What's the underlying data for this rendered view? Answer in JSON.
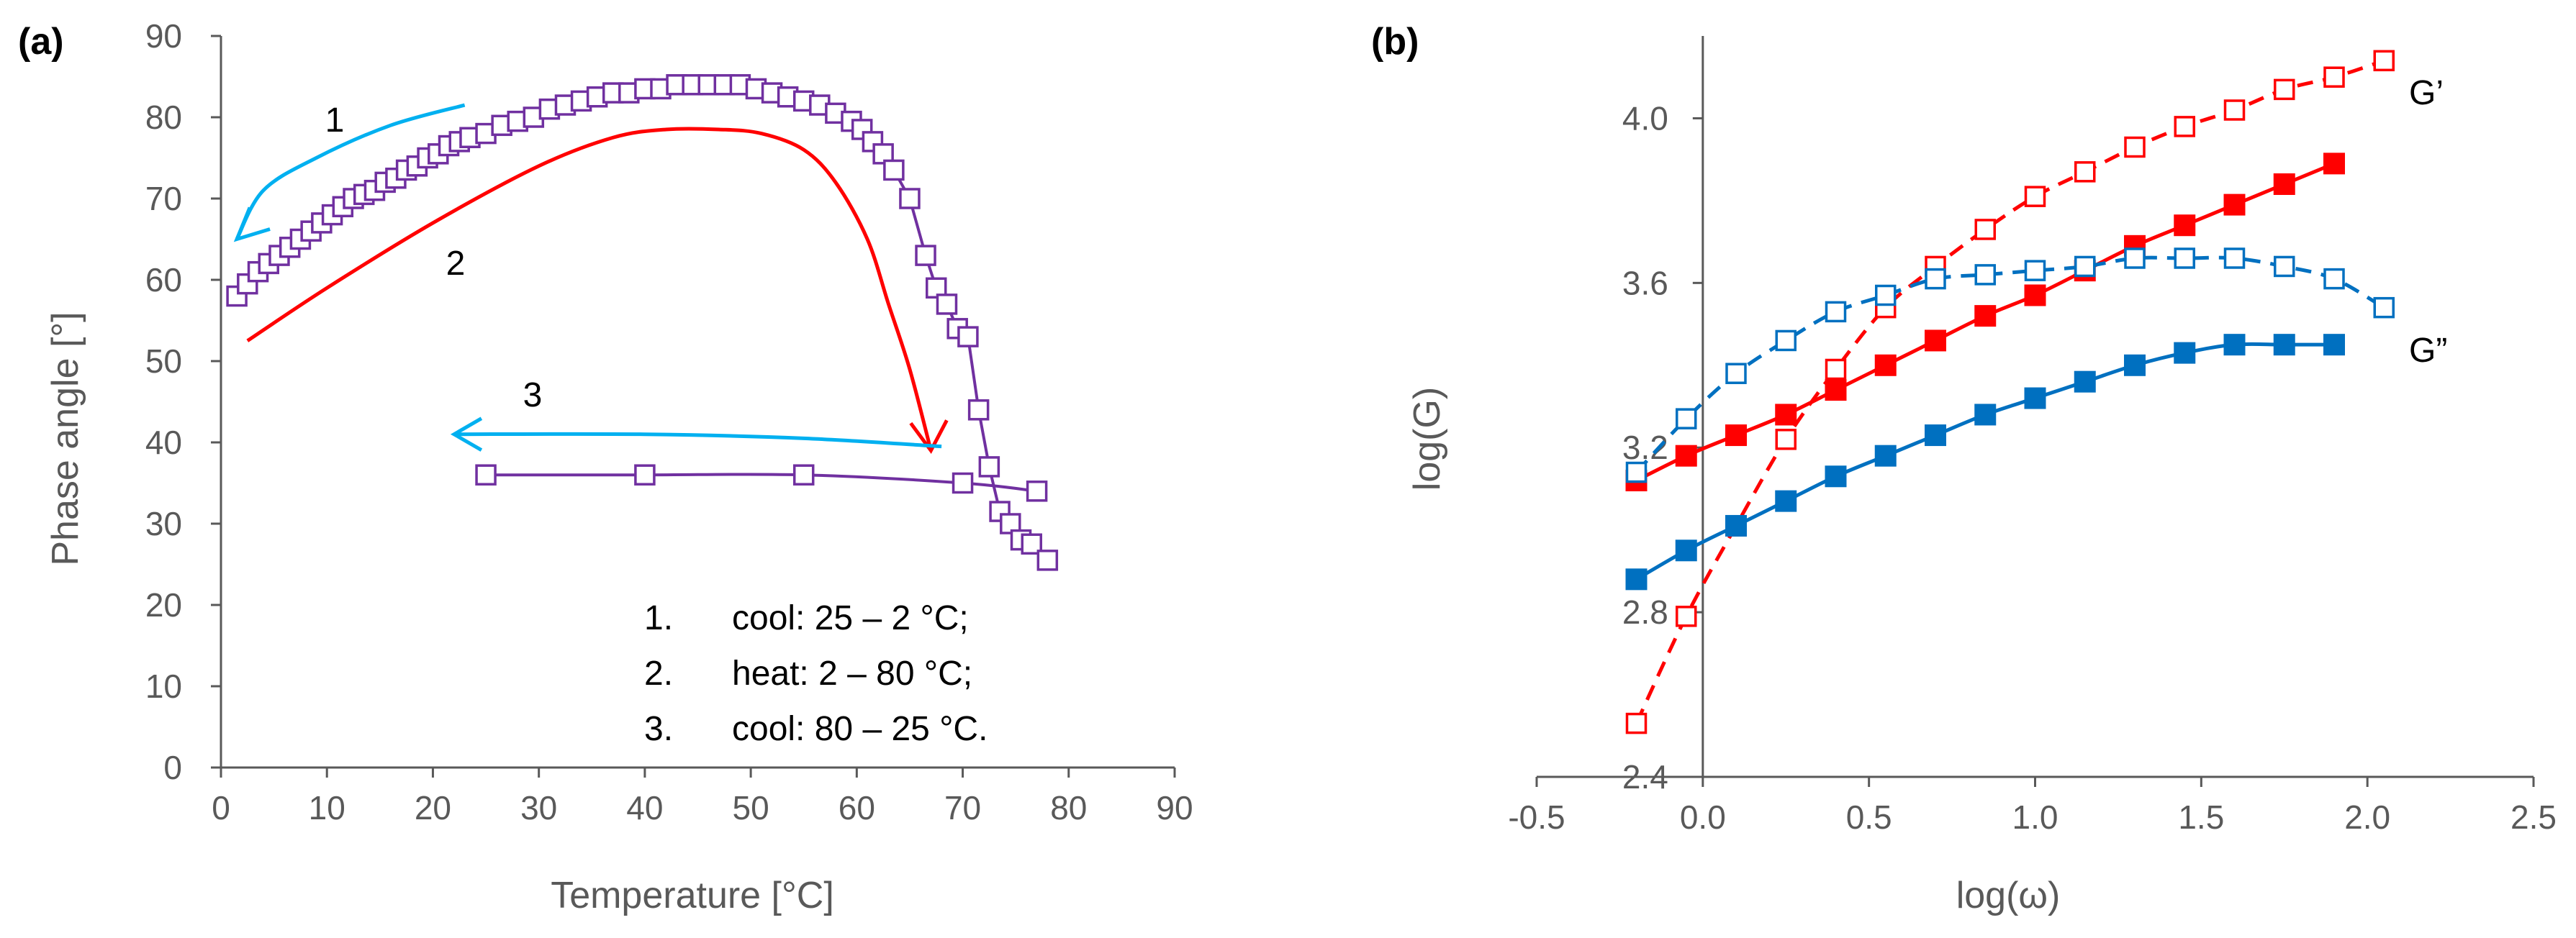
{
  "chart_data": [
    {
      "panel_label": "(a)",
      "type": "scatter",
      "xlabel": "Temperature [°C]",
      "ylabel": "Phase angle [°]",
      "xlim": [
        0,
        90
      ],
      "ylim": [
        0,
        90
      ],
      "xticks": [
        0,
        10,
        20,
        30,
        40,
        50,
        60,
        70,
        80,
        90
      ],
      "yticks": [
        0,
        10,
        20,
        30,
        40,
        50,
        60,
        70,
        80,
        90
      ],
      "colors": {
        "series": "#7030a0",
        "heat": "#ff0000",
        "cool_arrow": "#00b0f0",
        "axis": "#595959"
      },
      "series": [
        {
          "name": "cool 1 + heat 2 (markers)",
          "marker": "open-square",
          "x": [
            1.5,
            2.5,
            3.5,
            4.5,
            5.5,
            6.5,
            7.5,
            8.5,
            9.5,
            10.5,
            11.5,
            12.5,
            13.5,
            14.5,
            15.5,
            16.5,
            17.5,
            18.5,
            19.5,
            20.5,
            21.5,
            22.5,
            23.5,
            25,
            26.5,
            28,
            29.5,
            31,
            32.5,
            34,
            35.5,
            37,
            38.5,
            40,
            41.5,
            43,
            44.5,
            46,
            47.5,
            49,
            50.5,
            52,
            53.5,
            55,
            56.5,
            58,
            59.5,
            60.5,
            61.5,
            62.5,
            63.5,
            65,
            66.5,
            67.5,
            68.5,
            69.5,
            70.5,
            71.5,
            72.5,
            73.5,
            74.5,
            75.5,
            76.5,
            78
          ],
          "y": [
            58,
            59.5,
            61,
            62,
            63,
            64,
            65,
            66,
            67,
            68,
            69,
            70,
            70.5,
            71,
            72,
            72.5,
            73.5,
            74,
            75,
            75.5,
            76.5,
            77,
            77.5,
            78,
            79,
            79.5,
            80,
            81,
            81.5,
            82,
            82.5,
            83,
            83,
            83.5,
            83.5,
            84,
            84,
            84,
            84,
            84,
            83.5,
            83,
            82.5,
            82,
            81.5,
            80.5,
            79.5,
            78.5,
            77,
            75.5,
            73.5,
            70,
            63,
            59,
            57,
            54,
            53,
            44,
            37,
            31.5,
            30,
            28,
            27.5,
            25.5
          ]
        },
        {
          "name": "cool 3",
          "marker": "open-square",
          "x": [
            25,
            40,
            55,
            70,
            77
          ],
          "y": [
            36,
            36,
            36,
            35,
            34
          ]
        },
        {
          "name": "heat 2 (line)",
          "x": [
            2.5,
            10,
            20,
            30,
            37,
            42,
            47,
            51,
            55,
            58,
            61,
            63,
            65,
            67
          ],
          "y": [
            52.5,
            59,
            67,
            74,
            77.5,
            78.5,
            78.5,
            78,
            76,
            72,
            65,
            57,
            49,
            39
          ]
        }
      ],
      "annotations": [
        {
          "text": "1",
          "arrow": "cooling 25 → 2 °C"
        },
        {
          "text": "2",
          "arrow": "heating 2 → 80 °C"
        },
        {
          "text": "3",
          "arrow": "cooling 80 → 25 °C"
        }
      ],
      "legend_lines": [
        {
          "num": "1.",
          "text": "cool: 25 – 2 °C;"
        },
        {
          "num": "2.",
          "text": "heat: 2 – 80 °C;"
        },
        {
          "num": "3.",
          "text": "cool: 80 – 25 °C."
        }
      ]
    },
    {
      "panel_label": "(b)",
      "type": "line",
      "xlabel": "log(ω)",
      "ylabel": "log(G)",
      "xlim": [
        -0.5,
        2.5
      ],
      "ylim": [
        2.4,
        4.2
      ],
      "xticks": [
        "-0.5",
        "0.0",
        "0.5",
        "1.0",
        "1.5",
        "2.0",
        "2.5"
      ],
      "yticks": [
        "2.4",
        "2.8",
        "3.2",
        "3.6",
        "4.0"
      ],
      "colors": {
        "red": "#ff0000",
        "blue": "#0070c0"
      },
      "series": [
        {
          "name": "G’ dashed open",
          "style": "dashed-open",
          "color": "#ff0000",
          "x": [
            -0.2,
            -0.05,
            0.1,
            0.25,
            0.4,
            0.55,
            0.7,
            0.85,
            1.0,
            1.15,
            1.3,
            1.45,
            1.6,
            1.75,
            1.9,
            2.05
          ],
          "y": [
            2.53,
            2.79,
            3.01,
            3.22,
            3.39,
            3.54,
            3.64,
            3.73,
            3.81,
            3.87,
            3.93,
            3.98,
            4.02,
            4.07,
            4.1,
            4.14
          ]
        },
        {
          "name": "G’ solid filled",
          "style": "solid-filled",
          "color": "#ff0000",
          "x": [
            -0.2,
            -0.05,
            0.1,
            0.25,
            0.4,
            0.55,
            0.7,
            0.85,
            1.0,
            1.15,
            1.3,
            1.45,
            1.6,
            1.75,
            1.9
          ],
          "y": [
            3.12,
            3.18,
            3.23,
            3.28,
            3.34,
            3.4,
            3.46,
            3.52,
            3.57,
            3.63,
            3.69,
            3.74,
            3.79,
            3.84,
            3.89
          ]
        },
        {
          "name": "G” dashed open",
          "style": "dashed-open",
          "color": "#0070c0",
          "x": [
            -0.2,
            -0.05,
            0.1,
            0.25,
            0.4,
            0.55,
            0.7,
            0.85,
            1.0,
            1.15,
            1.3,
            1.45,
            1.6,
            1.75,
            1.9,
            2.05
          ],
          "y": [
            3.14,
            3.27,
            3.38,
            3.46,
            3.53,
            3.57,
            3.61,
            3.62,
            3.63,
            3.64,
            3.66,
            3.66,
            3.66,
            3.64,
            3.61,
            3.54
          ]
        },
        {
          "name": "G” solid filled",
          "style": "solid-filled",
          "color": "#0070c0",
          "x": [
            -0.2,
            -0.05,
            0.1,
            0.25,
            0.4,
            0.55,
            0.7,
            0.85,
            1.0,
            1.15,
            1.3,
            1.45,
            1.6,
            1.75,
            1.9
          ],
          "y": [
            2.88,
            2.95,
            3.01,
            3.07,
            3.13,
            3.18,
            3.23,
            3.28,
            3.32,
            3.36,
            3.4,
            3.43,
            3.45,
            3.45,
            3.45
          ]
        }
      ],
      "curve_labels": [
        "G’",
        "G”"
      ]
    }
  ]
}
